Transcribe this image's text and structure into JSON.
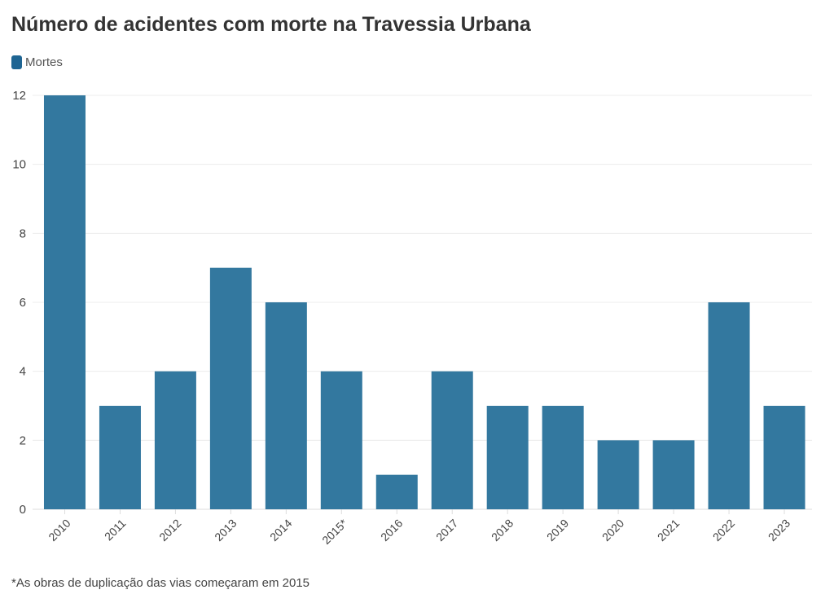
{
  "chart_data": {
    "type": "bar",
    "title": "Número de acidentes com morte na Travessia Urbana",
    "legend": {
      "placement": "top-left",
      "entries": [
        "Mortes"
      ]
    },
    "categories": [
      "2010",
      "2011",
      "2012",
      "2013",
      "2014",
      "2015*",
      "2016",
      "2017",
      "2018",
      "2019",
      "2020",
      "2021",
      "2022",
      "2023"
    ],
    "series": [
      {
        "name": "Mortes",
        "values": [
          12,
          3,
          4,
          7,
          6,
          4,
          1,
          4,
          3,
          3,
          2,
          2,
          6,
          3
        ],
        "color": "#33789f"
      }
    ],
    "yticks": [
      0,
      2,
      4,
      6,
      8,
      10,
      12
    ],
    "ylim": [
      0,
      12
    ],
    "grid": true,
    "note": "*As obras de duplicação das vias começaram em 2015"
  }
}
